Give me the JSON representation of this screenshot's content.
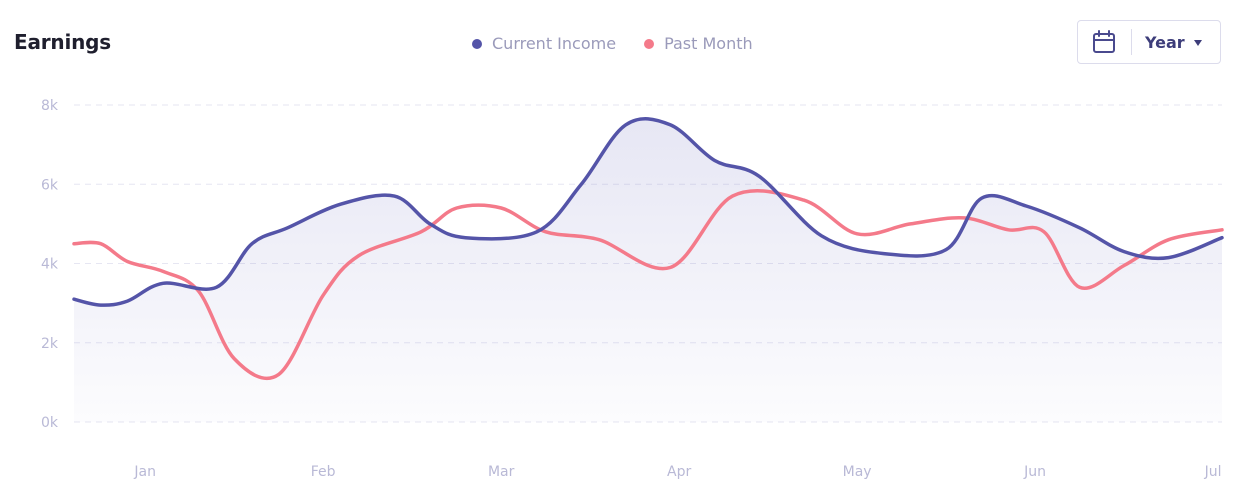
{
  "header": {
    "title": "Earnings",
    "period_label": "Year",
    "calendar_icon": "calendar-icon",
    "caret_icon": "caret-down-icon"
  },
  "legend": [
    {
      "label": "Current Income",
      "color": "#5454a8"
    },
    {
      "label": "Past Month",
      "color": "#f47a8a"
    }
  ],
  "chart_data": {
    "type": "line",
    "title": "Earnings",
    "xlabel": "",
    "ylabel": "",
    "x_range": [
      0.6,
      7.05
    ],
    "ylim": [
      0,
      8000
    ],
    "y_ticks": [
      0,
      2000,
      4000,
      6000,
      8000
    ],
    "y_tick_labels": [
      "0k",
      "2k",
      "4k",
      "6k",
      "8k"
    ],
    "x_ticks": [
      1,
      2,
      3,
      4,
      5,
      6,
      7
    ],
    "x_tick_labels": [
      "Jan",
      "Feb",
      "Mar",
      "Apr",
      "May",
      "Jun",
      "Jul"
    ],
    "grid": true,
    "legend_position": "top-center",
    "series": [
      {
        "name": "Current Income",
        "color": "#5454a8",
        "fill": true,
        "x": [
          0.6,
          0.75,
          0.9,
          1.1,
          1.4,
          1.6,
          1.8,
          2.1,
          2.4,
          2.6,
          2.8,
          3.2,
          3.45,
          3.7,
          3.95,
          4.2,
          4.45,
          4.8,
          5.15,
          5.5,
          5.7,
          5.95,
          6.25,
          6.5,
          6.75,
          7.05
        ],
        "y": [
          3100,
          2950,
          3050,
          3500,
          3400,
          4500,
          4900,
          5500,
          5700,
          5000,
          4650,
          4800,
          6000,
          7500,
          7500,
          6600,
          6200,
          4700,
          4250,
          4350,
          5650,
          5450,
          4900,
          4300,
          4150,
          4650
        ]
      },
      {
        "name": "Past Month",
        "color": "#f47a8a",
        "fill": false,
        "x": [
          0.6,
          0.75,
          0.9,
          1.1,
          1.3,
          1.5,
          1.75,
          2.0,
          2.2,
          2.55,
          2.75,
          3.0,
          3.25,
          3.55,
          3.95,
          4.3,
          4.7,
          5.0,
          5.3,
          5.6,
          5.85,
          6.05,
          6.25,
          6.5,
          6.75,
          7.05
        ],
        "y": [
          4500,
          4500,
          4050,
          3800,
          3300,
          1600,
          1200,
          3200,
          4200,
          4800,
          5400,
          5400,
          4800,
          4600,
          3900,
          5700,
          5600,
          4750,
          5000,
          5150,
          4850,
          4800,
          3400,
          3950,
          4600,
          4850
        ]
      }
    ]
  }
}
